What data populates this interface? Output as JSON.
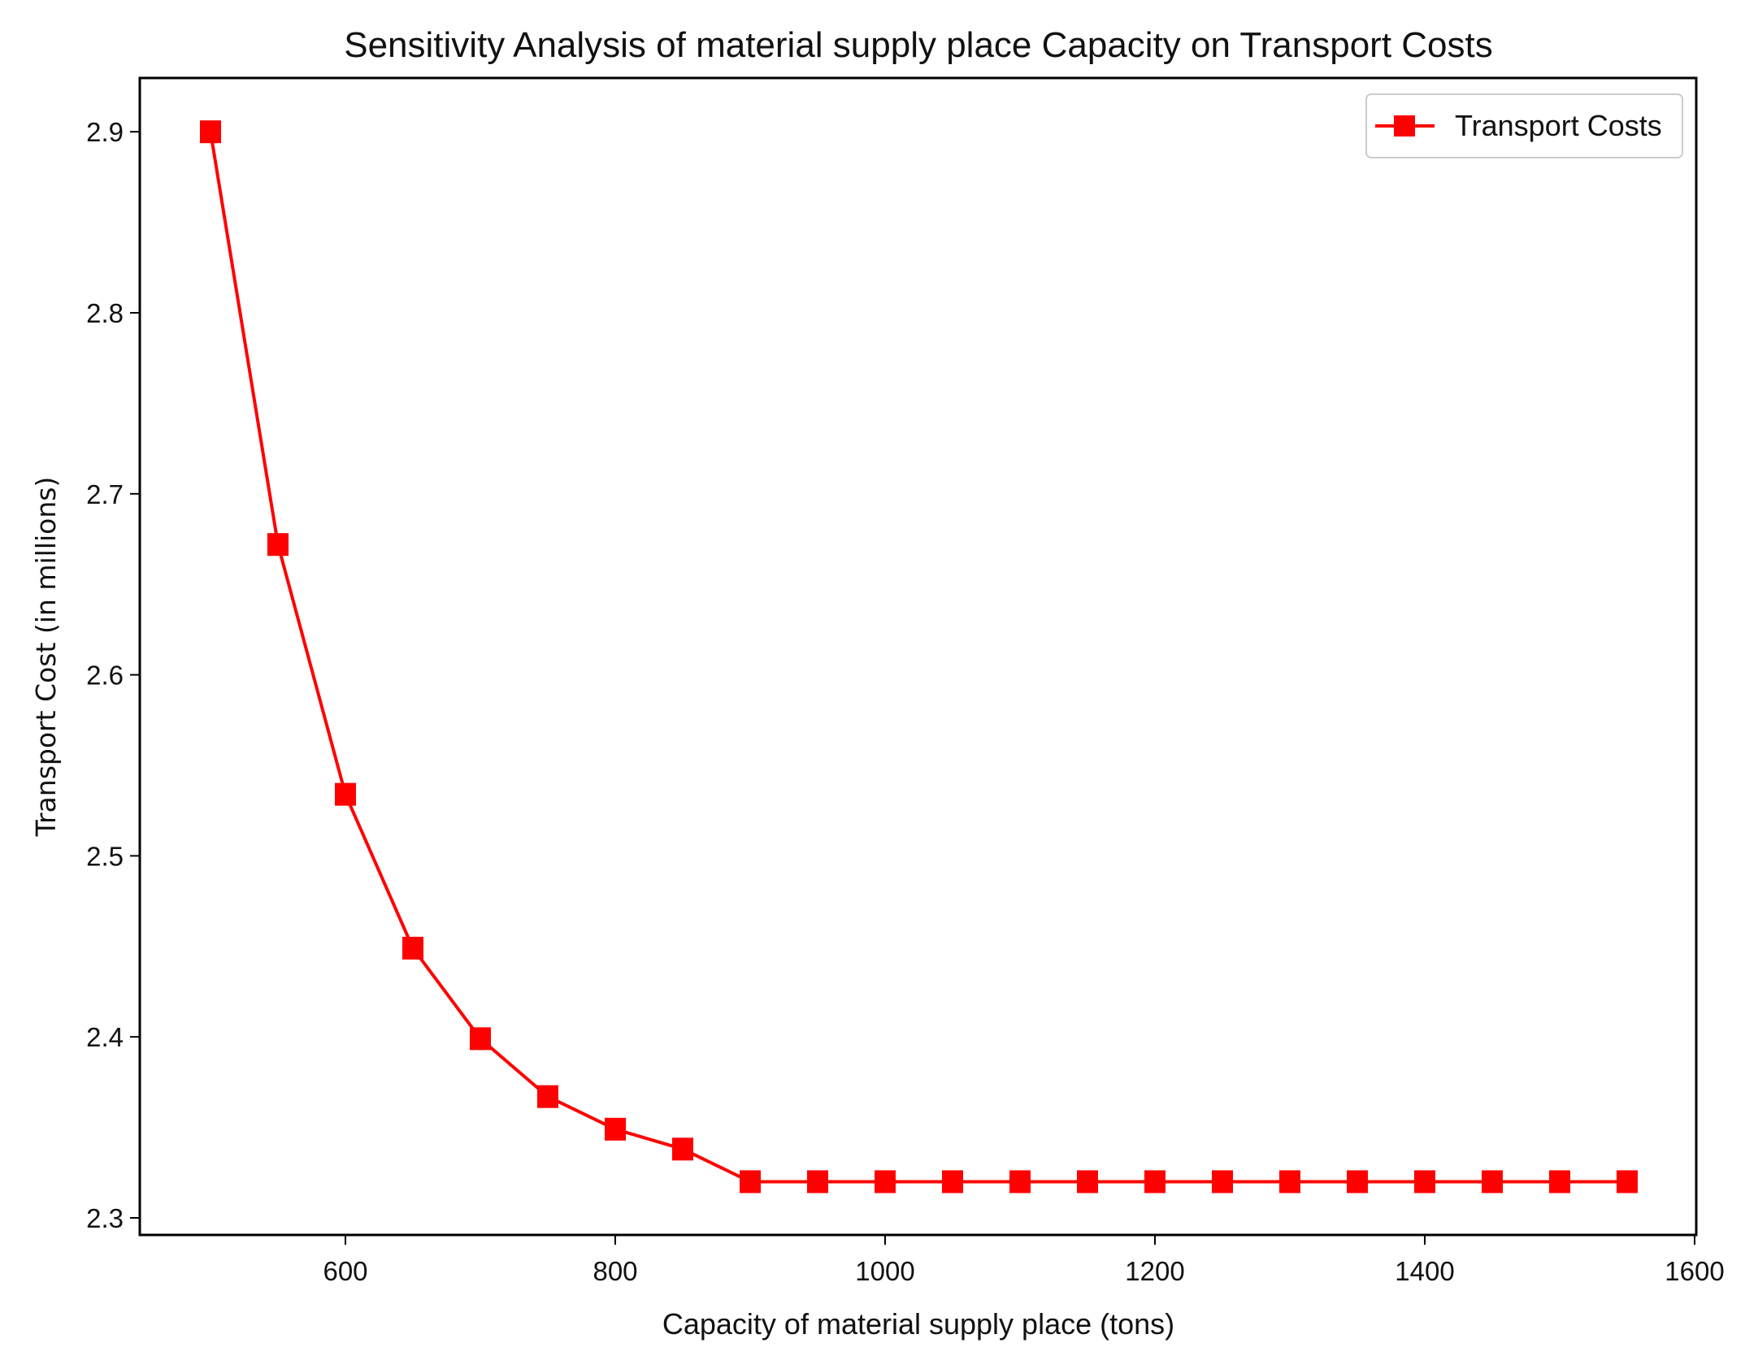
{
  "chart_data": {
    "type": "line",
    "title": "Sensitivity Analysis of material supply place Capacity on Transport Costs",
    "xlabel": "Capacity of material supply place (tons)",
    "ylabel": "Transport Cost (in millions)",
    "xlim": [
      450,
      1600
    ],
    "ylim": [
      2.29,
      2.93
    ],
    "xticks": [
      600,
      800,
      1000,
      1200,
      1400,
      1600
    ],
    "xtick_labels": [
      "600",
      "800",
      "1000",
      "1200",
      "1400",
      "1600"
    ],
    "yticks": [
      2.3,
      2.4,
      2.5,
      2.6,
      2.7,
      2.8,
      2.9
    ],
    "ytick_labels": [
      "2.3",
      "2.4",
      "2.5",
      "2.6",
      "2.7",
      "2.8",
      "2.9"
    ],
    "grid": false,
    "legend_position": "top-right",
    "series": [
      {
        "name": "Transport Costs",
        "color": "#ff0000",
        "marker": "square",
        "x": [
          500,
          550,
          600,
          650,
          700,
          750,
          800,
          850,
          900,
          950,
          1000,
          1050,
          1100,
          1150,
          1200,
          1250,
          1300,
          1350,
          1400,
          1450,
          1500,
          1550
        ],
        "y": [
          2.9,
          2.672,
          2.534,
          2.449,
          2.399,
          2.367,
          2.349,
          2.338,
          2.32,
          2.32,
          2.32,
          2.32,
          2.32,
          2.32,
          2.32,
          2.32,
          2.32,
          2.32,
          2.32,
          2.32,
          2.32,
          2.32
        ]
      }
    ]
  }
}
